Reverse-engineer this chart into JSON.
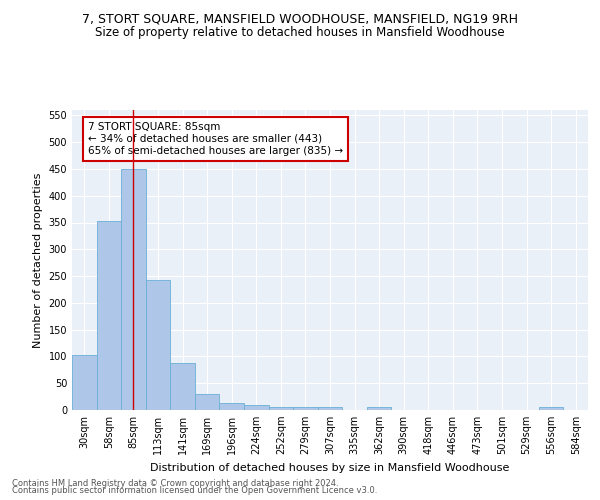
{
  "title": "7, STORT SQUARE, MANSFIELD WOODHOUSE, MANSFIELD, NG19 9RH",
  "subtitle": "Size of property relative to detached houses in Mansfield Woodhouse",
  "xlabel": "Distribution of detached houses by size in Mansfield Woodhouse",
  "ylabel": "Number of detached properties",
  "categories": [
    "30sqm",
    "58sqm",
    "85sqm",
    "113sqm",
    "141sqm",
    "169sqm",
    "196sqm",
    "224sqm",
    "252sqm",
    "279sqm",
    "307sqm",
    "335sqm",
    "362sqm",
    "390sqm",
    "418sqm",
    "446sqm",
    "473sqm",
    "501sqm",
    "529sqm",
    "556sqm",
    "584sqm"
  ],
  "values": [
    103,
    353,
    450,
    243,
    88,
    30,
    14,
    10,
    5,
    5,
    5,
    0,
    5,
    0,
    0,
    0,
    0,
    0,
    0,
    5,
    0
  ],
  "bar_color": "#aec6e8",
  "bar_edge_color": "#6baed6",
  "vline_x": 2,
  "vline_color": "#cc0000",
  "annotation_text": "7 STORT SQUARE: 85sqm\n← 34% of detached houses are smaller (443)\n65% of semi-detached houses are larger (835) →",
  "annotation_box_color": "white",
  "annotation_box_edge_color": "#cc0000",
  "footer_line1": "Contains HM Land Registry data © Crown copyright and database right 2024.",
  "footer_line2": "Contains public sector information licensed under the Open Government Licence v3.0.",
  "ylim": [
    0,
    560
  ],
  "yticks": [
    0,
    50,
    100,
    150,
    200,
    250,
    300,
    350,
    400,
    450,
    500,
    550
  ],
  "bg_color": "#eaf0f8",
  "grid_color": "#ffffff",
  "title_fontsize": 9,
  "subtitle_fontsize": 8.5,
  "label_fontsize": 8,
  "tick_fontsize": 7,
  "footer_fontsize": 6,
  "annotation_fontsize": 7.5
}
